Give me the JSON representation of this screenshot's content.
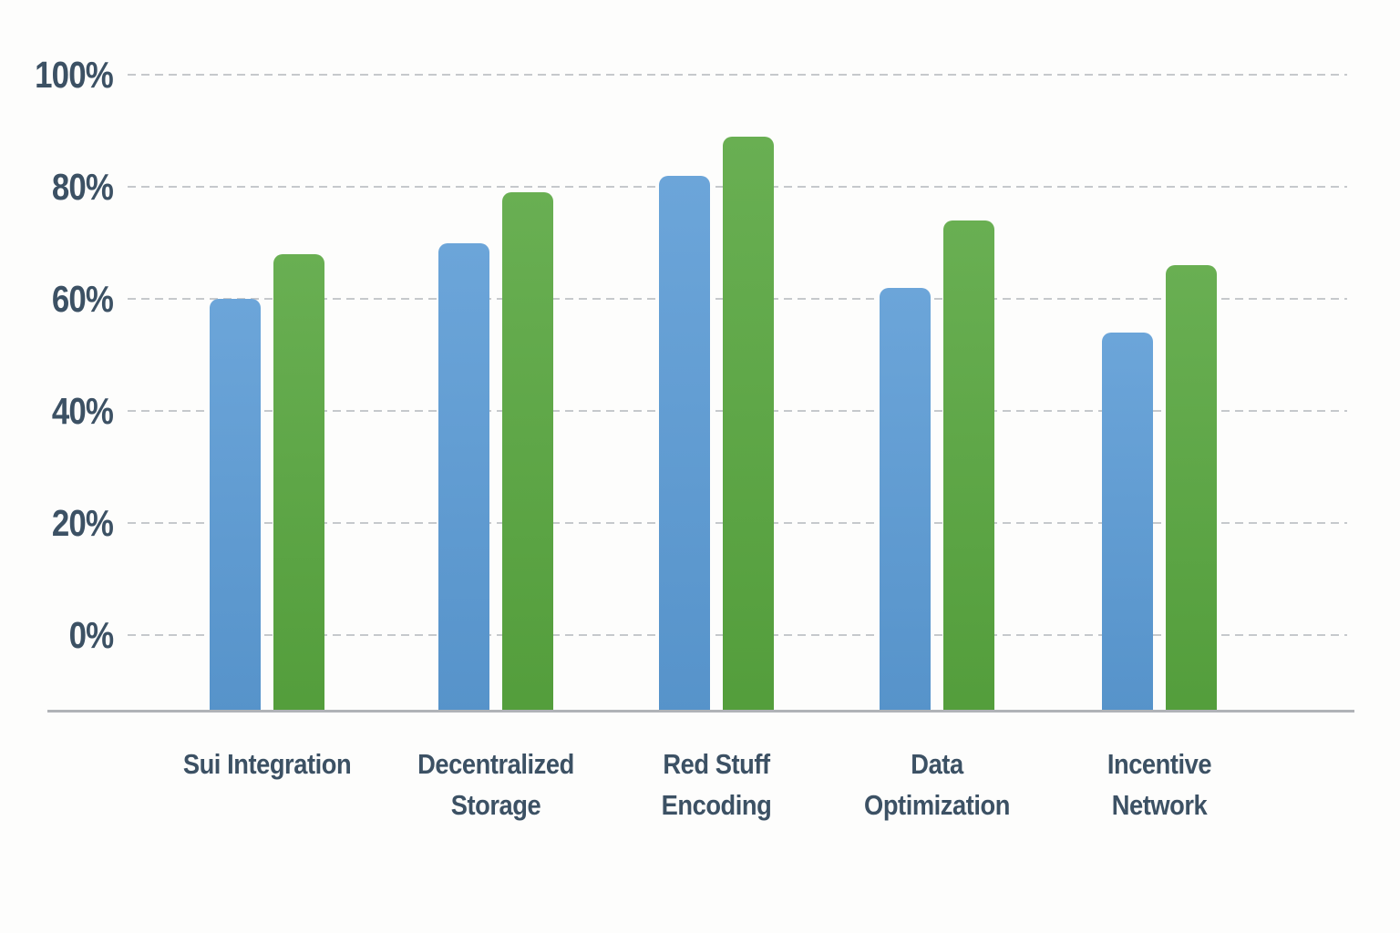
{
  "chart_data": {
    "type": "bar",
    "title": "",
    "xlabel": "",
    "ylabel": "",
    "categories": [
      "Sui Integration",
      "Decentralized Storage",
      "Red Stuff Encoding",
      "Data Optimization",
      "Incentive Network"
    ],
    "categories_lines": [
      [
        "Sui Integration"
      ],
      [
        "Decentralized",
        "Storage"
      ],
      [
        "Red Stuff",
        "Encoding"
      ],
      [
        "Data",
        "Optimization"
      ],
      [
        "Incentive",
        "Network"
      ]
    ],
    "series": [
      {
        "name": "blue-series",
        "color": "#5b9bd5",
        "values": [
          60,
          70,
          82,
          62,
          54
        ]
      },
      {
        "name": "green-series",
        "color": "#58a63f",
        "values": [
          68,
          79,
          89,
          74,
          66
        ]
      }
    ],
    "ylim": [
      0,
      100
    ],
    "ytick_values": [
      0,
      20,
      40,
      60,
      80,
      100
    ],
    "ytick_labels": [
      "0%",
      "20%",
      "40%",
      "60%",
      "80%",
      "100%"
    ],
    "grid": "horizontal-dashed",
    "legend_position": "none"
  },
  "colors": {
    "background": "#fdfdfc",
    "bar_blue": "#5b9bd5",
    "bar_green": "#58a63f",
    "axis_text": "#3c5164",
    "gridline": "#c6c9cc",
    "baseline": "#b0b3b7"
  }
}
